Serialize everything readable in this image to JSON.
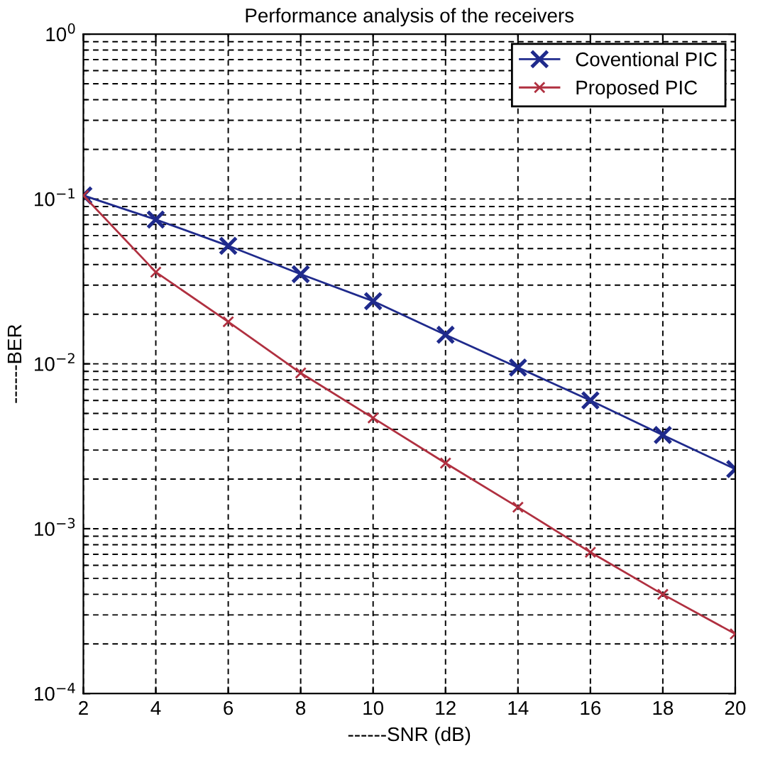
{
  "chart_data": {
    "type": "line",
    "title": "Performance analysis of the receivers",
    "xlabel": "------SNR (dB)",
    "ylabel": "------BER",
    "x": [
      2,
      4,
      6,
      8,
      10,
      12,
      14,
      16,
      18,
      20
    ],
    "series": [
      {
        "name": "Coventional PIC",
        "color": "#1f2a8c",
        "values": [
          0.105,
          0.075,
          0.052,
          0.035,
          0.024,
          0.015,
          0.0095,
          0.006,
          0.0037,
          0.0023
        ]
      },
      {
        "name": "Proposed PIC",
        "color": "#b03040",
        "values": [
          0.105,
          0.036,
          0.018,
          0.0088,
          0.0047,
          0.0025,
          0.00135,
          0.00072,
          0.0004,
          0.00023
        ]
      }
    ],
    "log": "y",
    "xlim": [
      2,
      20
    ],
    "xticks": [
      2,
      4,
      6,
      8,
      10,
      12,
      14,
      16,
      18,
      20
    ],
    "ylim": [
      0.0001,
      1
    ],
    "yticks": [
      {
        "value": 0.0001,
        "label": "10$^{−4}$"
      },
      {
        "value": 0.001,
        "label": "10$^{−3}$"
      },
      {
        "value": 0.01,
        "label": "10$^{−2}$"
      },
      {
        "value": 0.1,
        "label": "10$^{−1}$"
      },
      {
        "value": 1,
        "label": "10$^{0}$"
      }
    ],
    "grid": true,
    "legend": "top right",
    "marker": "cross",
    "line_style": "solid"
  }
}
